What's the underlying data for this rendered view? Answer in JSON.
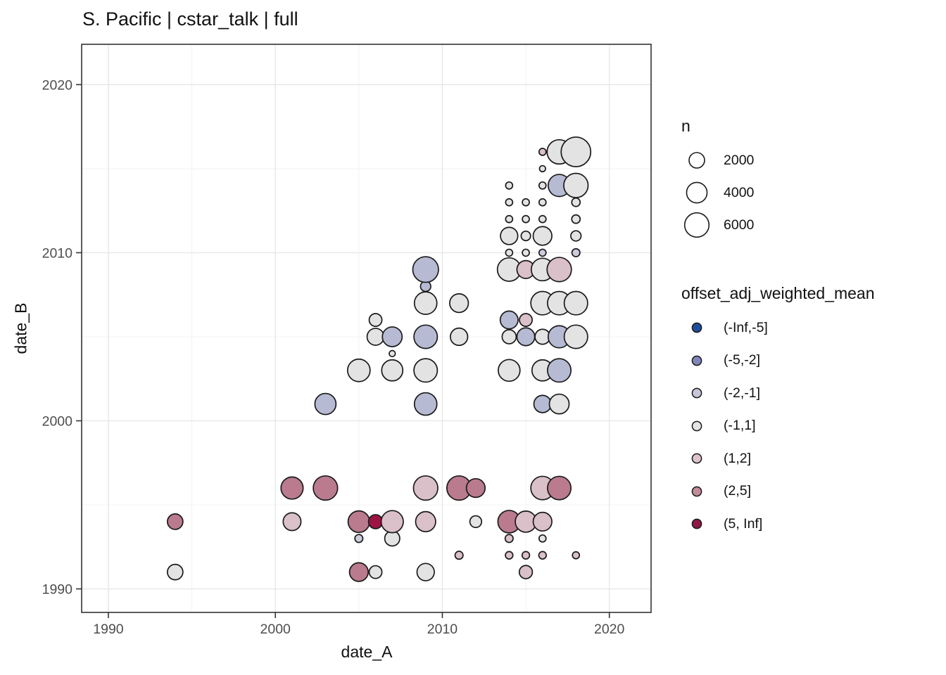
{
  "title": "S. Pacific | cstar_talk | full",
  "chart_data": {
    "type": "scatter",
    "title": "S. Pacific | cstar_talk | full",
    "xlabel": "date_A",
    "ylabel": "date_B",
    "xlim": [
      1988.4,
      2022.5
    ],
    "ylim": [
      1988.6,
      2022.4
    ],
    "x_ticks": [
      1990,
      2000,
      2010,
      2020
    ],
    "y_ticks": [
      1990,
      2000,
      2010,
      2020
    ],
    "x_minor_ticks": [
      1995,
      2005,
      2015
    ],
    "y_minor_ticks": [
      1995,
      2005,
      2015
    ],
    "grid": true,
    "legend_position": "right",
    "size_scale": {
      "title": "n",
      "breaks": [
        2000,
        4000,
        6000
      ]
    },
    "color_scale": {
      "title": "offset_adj_weighted_mean",
      "categories": [
        {
          "key": "neg_inf_m5",
          "label": "(-Inf,-5]",
          "key_fill": "#1e4d9b",
          "fill": "#5d77b0"
        },
        {
          "key": "m5_m2",
          "label": "(-5,-2]",
          "key_fill": "#7f86b8",
          "fill": "#b6bad3"
        },
        {
          "key": "m2_m1",
          "label": "(-2,-1]",
          "key_fill": "#c5c6d8",
          "fill": "#cbccdc"
        },
        {
          "key": "m1_1",
          "label": "(-1,1]",
          "key_fill": "#e5e4e3",
          "fill": "#e3e3e3"
        },
        {
          "key": "1_2",
          "label": "(1,2]",
          "key_fill": "#ddc4ca",
          "fill": "#dac0c8"
        },
        {
          "key": "2_5",
          "label": "(2,5]",
          "key_fill": "#c28c9a",
          "fill": "#b97b8d"
        },
        {
          "key": "5_inf",
          "label": "(5, Inf]",
          "key_fill": "#8e1945",
          "fill": "#9d1343"
        }
      ]
    },
    "points": [
      {
        "a": 1994,
        "b": 1991,
        "c": "m1_1",
        "n": 2000
      },
      {
        "a": 1994,
        "b": 1994,
        "c": "2_5",
        "n": 2000
      },
      {
        "a": 2001,
        "b": 1994,
        "c": "1_2",
        "n": 2850
      },
      {
        "a": 2001,
        "b": 1996,
        "c": "2_5",
        "n": 4800
      },
      {
        "a": 2003,
        "b": 1996,
        "c": "2_5",
        "n": 6000
      },
      {
        "a": 2003,
        "b": 2001,
        "c": "m5_m2",
        "n": 4300
      },
      {
        "a": 2005,
        "b": 1991,
        "c": "2_5",
        "n": 3200
      },
      {
        "a": 2005,
        "b": 1993,
        "c": "m2_m1",
        "n": 290
      },
      {
        "a": 2005,
        "b": 1994,
        "c": "2_5",
        "n": 4500
      },
      {
        "a": 2005,
        "b": 2003,
        "c": "m1_1",
        "n": 5000
      },
      {
        "a": 2006,
        "b": 1991,
        "c": "m1_1",
        "n": 1200
      },
      {
        "a": 2006,
        "b": 1994,
        "c": "5_inf",
        "n": 1550
      },
      {
        "a": 2006,
        "b": 2005,
        "c": "m1_1",
        "n": 2500
      },
      {
        "a": 2006,
        "b": 2006,
        "c": "m1_1",
        "n": 1200
      },
      {
        "a": 2007,
        "b": 1993,
        "c": "m1_1",
        "n": 1850
      },
      {
        "a": 2007,
        "b": 1994,
        "c": "1_2",
        "n": 4800
      },
      {
        "a": 2007,
        "b": 2003,
        "c": "m1_1",
        "n": 4300
      },
      {
        "a": 2007,
        "b": 2004,
        "c": "m1_1",
        "n": 100
      },
      {
        "a": 2007,
        "b": 2005,
        "c": "m5_m2",
        "n": 3650
      },
      {
        "a": 2009,
        "b": 1991,
        "c": "m1_1",
        "n": 2650
      },
      {
        "a": 2009,
        "b": 1994,
        "c": "1_2",
        "n": 3800
      },
      {
        "a": 2009,
        "b": 1996,
        "c": "1_2",
        "n": 6000
      },
      {
        "a": 2009,
        "b": 2001,
        "c": "m5_m2",
        "n": 5000
      },
      {
        "a": 2009,
        "b": 2003,
        "c": "m1_1",
        "n": 5500
      },
      {
        "a": 2009,
        "b": 2005,
        "c": "m5_m2",
        "n": 5500
      },
      {
        "a": 2009,
        "b": 2007,
        "c": "m1_1",
        "n": 5000
      },
      {
        "a": 2009,
        "b": 2008,
        "c": "m5_m2",
        "n": 650
      },
      {
        "a": 2009,
        "b": 2009,
        "c": "m5_m2",
        "n": 6800
      },
      {
        "a": 2011,
        "b": 1992,
        "c": "1_2",
        "n": 290
      },
      {
        "a": 2011,
        "b": 1996,
        "c": "2_5",
        "n": 6000
      },
      {
        "a": 2011,
        "b": 2005,
        "c": "m1_1",
        "n": 2650
      },
      {
        "a": 2011,
        "b": 2007,
        "c": "m1_1",
        "n": 3200
      },
      {
        "a": 2012,
        "b": 1994,
        "c": "m1_1",
        "n": 950
      },
      {
        "a": 2012,
        "b": 1996,
        "c": "2_5",
        "n": 3200
      },
      {
        "a": 2014,
        "b": 1992,
        "c": "1_2",
        "n": 230
      },
      {
        "a": 2014,
        "b": 1993,
        "c": "1_2",
        "n": 290
      },
      {
        "a": 2014,
        "b": 1994,
        "c": "2_5",
        "n": 5000
      },
      {
        "a": 2014,
        "b": 2003,
        "c": "m1_1",
        "n": 4600
      },
      {
        "a": 2014,
        "b": 2005,
        "c": "m1_1",
        "n": 1550
      },
      {
        "a": 2014,
        "b": 2006,
        "c": "m5_m2",
        "n": 2850
      },
      {
        "a": 2014,
        "b": 2009,
        "c": "m1_1",
        "n": 5500
      },
      {
        "a": 2014,
        "b": 2010,
        "c": "m1_1",
        "n": 180
      },
      {
        "a": 2014,
        "b": 2011,
        "c": "m1_1",
        "n": 2650
      },
      {
        "a": 2014,
        "b": 2012,
        "c": "m1_1",
        "n": 180
      },
      {
        "a": 2014,
        "b": 2013,
        "c": "m1_1",
        "n": 180
      },
      {
        "a": 2014,
        "b": 2014,
        "c": "m1_1",
        "n": 180
      },
      {
        "a": 2015,
        "b": 1991,
        "c": "1_2",
        "n": 1300
      },
      {
        "a": 2015,
        "b": 1992,
        "c": "1_2",
        "n": 230
      },
      {
        "a": 2015,
        "b": 1994,
        "c": "1_2",
        "n": 4300
      },
      {
        "a": 2015,
        "b": 2005,
        "c": "m5_m2",
        "n": 2850
      },
      {
        "a": 2015,
        "b": 2006,
        "c": "1_2",
        "n": 1200
      },
      {
        "a": 2015,
        "b": 2009,
        "c": "1_2",
        "n": 2850
      },
      {
        "a": 2015,
        "b": 2010,
        "c": "m1_1",
        "n": 180
      },
      {
        "a": 2015,
        "b": 2011,
        "c": "m1_1",
        "n": 500
      },
      {
        "a": 2015,
        "b": 2012,
        "c": "m1_1",
        "n": 180
      },
      {
        "a": 2015,
        "b": 2013,
        "c": "m1_1",
        "n": 180
      },
      {
        "a": 2016,
        "b": 1992,
        "c": "1_2",
        "n": 230
      },
      {
        "a": 2016,
        "b": 1993,
        "c": "m1_1",
        "n": 180
      },
      {
        "a": 2016,
        "b": 1994,
        "c": "1_2",
        "n": 3200
      },
      {
        "a": 2016,
        "b": 1996,
        "c": "1_2",
        "n": 5500
      },
      {
        "a": 2016,
        "b": 2001,
        "c": "m5_m2",
        "n": 2650
      },
      {
        "a": 2016,
        "b": 2003,
        "c": "m1_1",
        "n": 4300
      },
      {
        "a": 2016,
        "b": 2005,
        "c": "m1_1",
        "n": 1850
      },
      {
        "a": 2016,
        "b": 2007,
        "c": "m1_1",
        "n": 5500
      },
      {
        "a": 2016,
        "b": 2009,
        "c": "m1_1",
        "n": 5000
      },
      {
        "a": 2016,
        "b": 2010,
        "c": "m2_m1",
        "n": 180
      },
      {
        "a": 2016,
        "b": 2011,
        "c": "m1_1",
        "n": 3200
      },
      {
        "a": 2016,
        "b": 2012,
        "c": "m1_1",
        "n": 180
      },
      {
        "a": 2016,
        "b": 2013,
        "c": "m1_1",
        "n": 180
      },
      {
        "a": 2016,
        "b": 2014,
        "c": "m1_1",
        "n": 180
      },
      {
        "a": 2016,
        "b": 2015,
        "c": "m1_1",
        "n": 100
      },
      {
        "a": 2016,
        "b": 2016,
        "c": "1_2",
        "n": 180
      },
      {
        "a": 2017,
        "b": 1996,
        "c": "2_5",
        "n": 5500
      },
      {
        "a": 2017,
        "b": 2001,
        "c": "m1_1",
        "n": 3650
      },
      {
        "a": 2017,
        "b": 2003,
        "c": "m5_m2",
        "n": 5500
      },
      {
        "a": 2017,
        "b": 2005,
        "c": "m5_m2",
        "n": 4800
      },
      {
        "a": 2017,
        "b": 2007,
        "c": "m1_1",
        "n": 5500
      },
      {
        "a": 2017,
        "b": 2009,
        "c": "1_2",
        "n": 6000
      },
      {
        "a": 2017,
        "b": 2014,
        "c": "m5_m2",
        "n": 4800
      },
      {
        "a": 2017,
        "b": 2016,
        "c": "m1_1",
        "n": 6000
      },
      {
        "a": 2018,
        "b": 1992,
        "c": "1_2",
        "n": 180
      },
      {
        "a": 2018,
        "b": 2005,
        "c": "m1_1",
        "n": 5500
      },
      {
        "a": 2018,
        "b": 2007,
        "c": "m1_1",
        "n": 5500
      },
      {
        "a": 2018,
        "b": 2010,
        "c": "m2_m1",
        "n": 290
      },
      {
        "a": 2018,
        "b": 2011,
        "c": "m1_1",
        "n": 650
      },
      {
        "a": 2018,
        "b": 2012,
        "c": "m1_1",
        "n": 350
      },
      {
        "a": 2018,
        "b": 2013,
        "c": "m1_1",
        "n": 350
      },
      {
        "a": 2018,
        "b": 2014,
        "c": "m1_1",
        "n": 6000
      },
      {
        "a": 2018,
        "b": 2016,
        "c": "m1_1",
        "n": 9400
      }
    ]
  }
}
